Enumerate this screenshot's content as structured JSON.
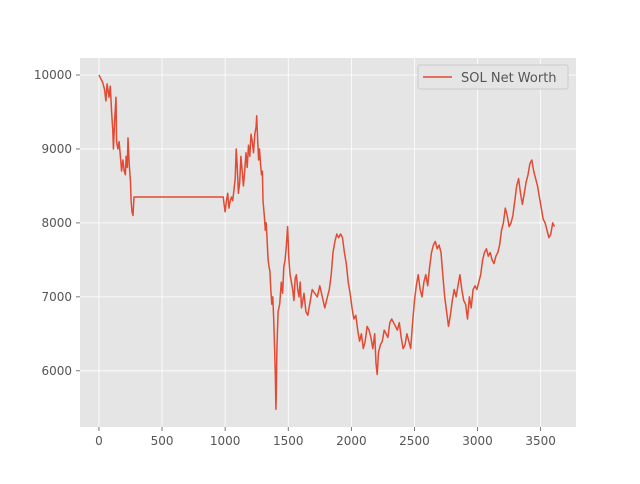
{
  "chart_data": {
    "type": "line",
    "title": "",
    "xlabel": "",
    "ylabel": "",
    "xlim": [
      -150,
      3780
    ],
    "ylim": [
      5240,
      10230
    ],
    "xticks": [
      0,
      500,
      1000,
      1500,
      2000,
      2500,
      3000,
      3500
    ],
    "yticks": [
      6000,
      7000,
      8000,
      9000,
      10000
    ],
    "xtick_labels": [
      "0",
      "500",
      "1000",
      "1500",
      "2000",
      "2500",
      "3000",
      "3500"
    ],
    "ytick_labels": [
      "6000",
      "7000",
      "8000",
      "9000",
      "10000"
    ],
    "grid": true,
    "style": "ggplot",
    "legend": {
      "position": "top-right"
    },
    "series": [
      {
        "name": "SOL Net Worth",
        "color": "#E24A33",
        "points": [
          [
            0,
            10000
          ],
          [
            15,
            9950
          ],
          [
            30,
            9900
          ],
          [
            45,
            9800
          ],
          [
            55,
            9650
          ],
          [
            65,
            9880
          ],
          [
            80,
            9700
          ],
          [
            90,
            9850
          ],
          [
            100,
            9500
          ],
          [
            110,
            9250
          ],
          [
            115,
            9000
          ],
          [
            125,
            9400
          ],
          [
            135,
            9700
          ],
          [
            140,
            9100
          ],
          [
            150,
            9000
          ],
          [
            160,
            9100
          ],
          [
            170,
            8900
          ],
          [
            180,
            8700
          ],
          [
            190,
            8850
          ],
          [
            200,
            8700
          ],
          [
            210,
            8650
          ],
          [
            215,
            8900
          ],
          [
            225,
            8750
          ],
          [
            230,
            9150
          ],
          [
            240,
            8800
          ],
          [
            250,
            8550
          ],
          [
            255,
            8300
          ],
          [
            262,
            8150
          ],
          [
            270,
            8100
          ],
          [
            278,
            8350
          ],
          [
            285,
            8350
          ],
          [
            500,
            8350
          ],
          [
            800,
            8350
          ],
          [
            985,
            8350
          ],
          [
            992,
            8250
          ],
          [
            1000,
            8150
          ],
          [
            1010,
            8300
          ],
          [
            1020,
            8400
          ],
          [
            1030,
            8200
          ],
          [
            1040,
            8300
          ],
          [
            1050,
            8350
          ],
          [
            1060,
            8300
          ],
          [
            1070,
            8450
          ],
          [
            1080,
            8600
          ],
          [
            1088,
            9000
          ],
          [
            1095,
            8800
          ],
          [
            1105,
            8400
          ],
          [
            1115,
            8550
          ],
          [
            1125,
            8900
          ],
          [
            1135,
            8700
          ],
          [
            1145,
            8500
          ],
          [
            1155,
            8700
          ],
          [
            1165,
            8950
          ],
          [
            1175,
            8750
          ],
          [
            1185,
            9050
          ],
          [
            1195,
            8900
          ],
          [
            1205,
            9200
          ],
          [
            1215,
            9100
          ],
          [
            1225,
            8950
          ],
          [
            1235,
            9200
          ],
          [
            1245,
            9300
          ],
          [
            1250,
            9450
          ],
          [
            1258,
            9100
          ],
          [
            1265,
            8850
          ],
          [
            1272,
            9000
          ],
          [
            1280,
            8800
          ],
          [
            1288,
            8650
          ],
          [
            1295,
            8700
          ],
          [
            1300,
            8300
          ],
          [
            1310,
            8100
          ],
          [
            1318,
            7900
          ],
          [
            1325,
            8000
          ],
          [
            1332,
            7800
          ],
          [
            1340,
            7500
          ],
          [
            1348,
            7400
          ],
          [
            1355,
            7350
          ],
          [
            1362,
            7100
          ],
          [
            1370,
            6900
          ],
          [
            1378,
            7000
          ],
          [
            1385,
            6700
          ],
          [
            1392,
            6300
          ],
          [
            1398,
            5900
          ],
          [
            1402,
            5480
          ],
          [
            1405,
            5700
          ],
          [
            1410,
            6300
          ],
          [
            1420,
            6800
          ],
          [
            1432,
            6900
          ],
          [
            1445,
            7200
          ],
          [
            1455,
            7050
          ],
          [
            1465,
            7400
          ],
          [
            1475,
            7500
          ],
          [
            1485,
            7700
          ],
          [
            1495,
            7950
          ],
          [
            1505,
            7500
          ],
          [
            1515,
            7300
          ],
          [
            1525,
            7200
          ],
          [
            1535,
            7100
          ],
          [
            1545,
            6950
          ],
          [
            1555,
            7250
          ],
          [
            1565,
            7300
          ],
          [
            1575,
            7100
          ],
          [
            1585,
            7000
          ],
          [
            1595,
            7200
          ],
          [
            1605,
            6850
          ],
          [
            1615,
            6950
          ],
          [
            1625,
            7050
          ],
          [
            1640,
            6800
          ],
          [
            1655,
            6750
          ],
          [
            1670,
            6900
          ],
          [
            1690,
            7100
          ],
          [
            1710,
            7050
          ],
          [
            1730,
            7000
          ],
          [
            1750,
            7150
          ],
          [
            1770,
            7000
          ],
          [
            1790,
            6850
          ],
          [
            1810,
            7000
          ],
          [
            1825,
            7100
          ],
          [
            1840,
            7300
          ],
          [
            1855,
            7600
          ],
          [
            1870,
            7750
          ],
          [
            1885,
            7850
          ],
          [
            1900,
            7800
          ],
          [
            1915,
            7850
          ],
          [
            1930,
            7800
          ],
          [
            1945,
            7600
          ],
          [
            1960,
            7450
          ],
          [
            1975,
            7200
          ],
          [
            1990,
            7050
          ],
          [
            2005,
            6850
          ],
          [
            2020,
            6700
          ],
          [
            2035,
            6750
          ],
          [
            2050,
            6550
          ],
          [
            2065,
            6400
          ],
          [
            2080,
            6500
          ],
          [
            2095,
            6300
          ],
          [
            2110,
            6400
          ],
          [
            2125,
            6600
          ],
          [
            2140,
            6550
          ],
          [
            2155,
            6450
          ],
          [
            2170,
            6300
          ],
          [
            2185,
            6500
          ],
          [
            2195,
            6100
          ],
          [
            2205,
            5950
          ],
          [
            2215,
            6250
          ],
          [
            2230,
            6350
          ],
          [
            2245,
            6400
          ],
          [
            2260,
            6550
          ],
          [
            2275,
            6500
          ],
          [
            2290,
            6450
          ],
          [
            2305,
            6650
          ],
          [
            2320,
            6700
          ],
          [
            2335,
            6650
          ],
          [
            2350,
            6600
          ],
          [
            2365,
            6550
          ],
          [
            2380,
            6650
          ],
          [
            2395,
            6450
          ],
          [
            2410,
            6300
          ],
          [
            2425,
            6350
          ],
          [
            2440,
            6500
          ],
          [
            2455,
            6400
          ],
          [
            2470,
            6300
          ],
          [
            2485,
            6650
          ],
          [
            2500,
            6950
          ],
          [
            2515,
            7150
          ],
          [
            2530,
            7300
          ],
          [
            2545,
            7100
          ],
          [
            2560,
            7000
          ],
          [
            2575,
            7200
          ],
          [
            2590,
            7300
          ],
          [
            2605,
            7150
          ],
          [
            2620,
            7400
          ],
          [
            2635,
            7600
          ],
          [
            2650,
            7700
          ],
          [
            2665,
            7750
          ],
          [
            2680,
            7650
          ],
          [
            2695,
            7700
          ],
          [
            2710,
            7600
          ],
          [
            2725,
            7300
          ],
          [
            2740,
            7000
          ],
          [
            2755,
            6800
          ],
          [
            2770,
            6600
          ],
          [
            2785,
            6750
          ],
          [
            2800,
            6950
          ],
          [
            2815,
            7100
          ],
          [
            2830,
            7000
          ],
          [
            2845,
            7150
          ],
          [
            2860,
            7300
          ],
          [
            2875,
            7100
          ],
          [
            2890,
            6950
          ],
          [
            2905,
            6900
          ],
          [
            2920,
            6700
          ],
          [
            2935,
            7000
          ],
          [
            2950,
            6850
          ],
          [
            2965,
            7100
          ],
          [
            2980,
            7150
          ],
          [
            2995,
            7100
          ],
          [
            3010,
            7200
          ],
          [
            3025,
            7300
          ],
          [
            3040,
            7500
          ],
          [
            3055,
            7600
          ],
          [
            3070,
            7650
          ],
          [
            3085,
            7550
          ],
          [
            3100,
            7600
          ],
          [
            3115,
            7500
          ],
          [
            3130,
            7450
          ],
          [
            3145,
            7550
          ],
          [
            3160,
            7600
          ],
          [
            3175,
            7700
          ],
          [
            3190,
            7900
          ],
          [
            3205,
            8000
          ],
          [
            3220,
            8200
          ],
          [
            3235,
            8100
          ],
          [
            3250,
            7950
          ],
          [
            3265,
            8000
          ],
          [
            3280,
            8100
          ],
          [
            3295,
            8300
          ],
          [
            3310,
            8500
          ],
          [
            3325,
            8600
          ],
          [
            3340,
            8400
          ],
          [
            3355,
            8250
          ],
          [
            3370,
            8400
          ],
          [
            3385,
            8550
          ],
          [
            3400,
            8650
          ],
          [
            3415,
            8800
          ],
          [
            3430,
            8850
          ],
          [
            3445,
            8700
          ],
          [
            3460,
            8600
          ],
          [
            3475,
            8500
          ],
          [
            3490,
            8350
          ],
          [
            3505,
            8200
          ],
          [
            3520,
            8050
          ],
          [
            3535,
            8000
          ],
          [
            3550,
            7900
          ],
          [
            3565,
            7800
          ],
          [
            3580,
            7850
          ],
          [
            3595,
            8000
          ],
          [
            3610,
            7950
          ]
        ]
      }
    ]
  }
}
